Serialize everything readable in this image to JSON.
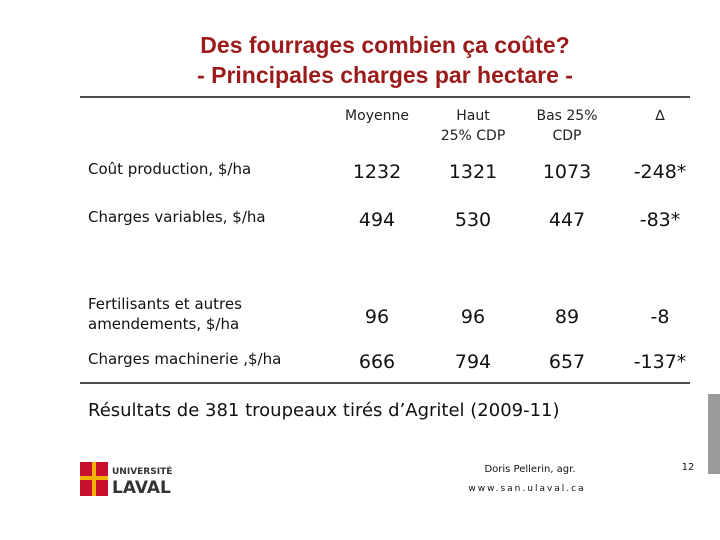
{
  "title": [
    "Des fourrages combien ça coûte?",
    "- Principales charges par hectare -"
  ],
  "table": {
    "headers": [
      [
        "Moyenne"
      ],
      [
        "Haut",
        "25% CDP"
      ],
      [
        "Bas 25%",
        "CDP"
      ],
      [
        "∆"
      ]
    ],
    "rows": [
      {
        "label": [
          "Coût production, $/ha"
        ],
        "values": [
          "1232",
          "1321",
          "1073",
          "-248*"
        ]
      },
      {
        "label": [
          "Charges variables, $/ha"
        ],
        "values": [
          "494",
          "530",
          "447",
          "-83*"
        ]
      },
      {
        "label": [
          "Fertilisants et autres",
          "amendements, $/ha"
        ],
        "values": [
          "96",
          "96",
          "89",
          "-8"
        ]
      },
      {
        "label": [
          "Charges machinerie ,$/ha"
        ],
        "values": [
          "666",
          "794",
          "657",
          "-137*"
        ]
      }
    ]
  },
  "note": "Résultats de 381 troupeaux tirés d’Agritel (2009-11)",
  "footer": {
    "logo": [
      "UNIVERSITÉ",
      "LAVAL"
    ],
    "author": "Doris Pellerin, agr.",
    "url": "www.san.ulaval.ca",
    "page": "12"
  }
}
